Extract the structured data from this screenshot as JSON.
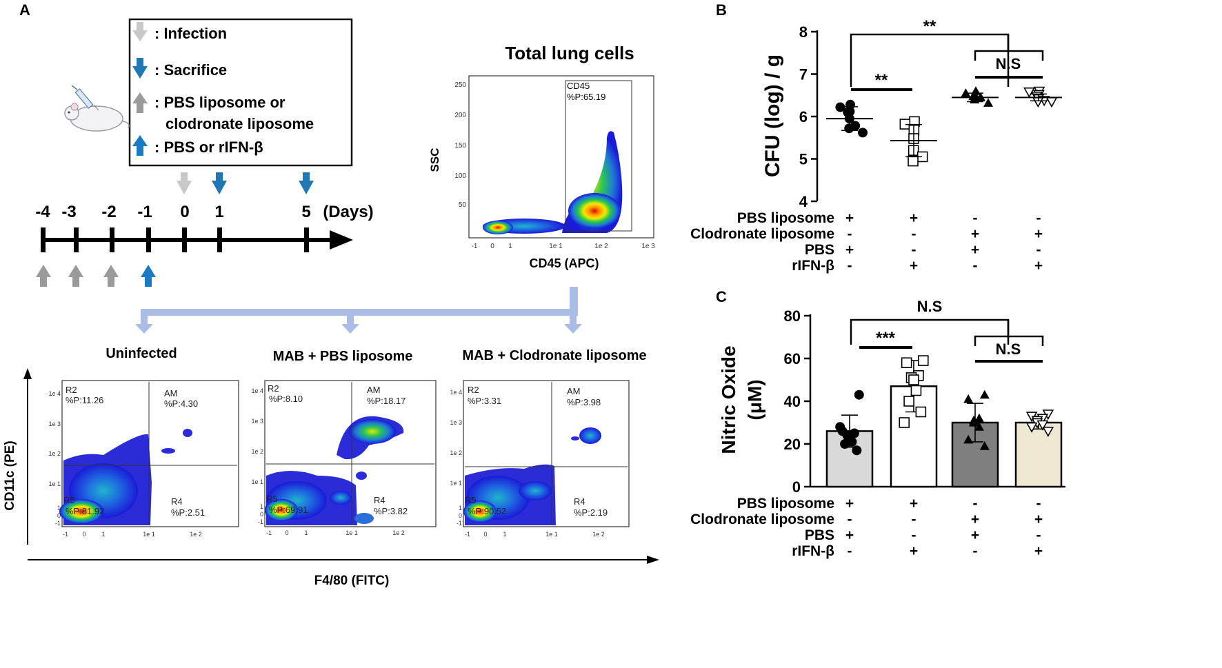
{
  "panel_a": {
    "label": "A",
    "legend": {
      "infection": ": Infection",
      "sacrifice": ": Sacrifice",
      "liposome_line1": ": PBS liposome or",
      "liposome_line2": "clodronate liposome",
      "treatment": ": PBS or rIFN-β"
    },
    "timeline": {
      "days": [
        "-4",
        "-3",
        "-2",
        "-1",
        "0",
        "1",
        "5"
      ],
      "unit": "(Days)"
    },
    "colors": {
      "infection": "#c8c8c8",
      "sacrifice": "#1f77b4",
      "liposome": "#9a9a9a",
      "treatment": "#1a7bc4",
      "connector": "#a9bde6"
    },
    "total_lung": {
      "title": "Total lung cells",
      "gate_name": "CD45",
      "gate_pct": "%P:65.19",
      "ylabel": "SSC",
      "xlabel": "CD45 (APC)",
      "y_ticks": [
        "250",
        "200",
        "150",
        "100",
        "50"
      ],
      "x_ticks": [
        "-1",
        "0",
        "1",
        "1e 1",
        "1e 2",
        "1e 3"
      ]
    },
    "flow_plots": [
      {
        "title": "Uninfected",
        "r2": "R2",
        "r2_pct": "%P:11.26",
        "am": "AM",
        "am_pct": "%P:4.30",
        "r4": "R4",
        "r4_pct": "%P:2.51",
        "r5": "R5",
        "r5_pct": "%P:81.92"
      },
      {
        "title": "MAB + PBS liposome",
        "r2": "R2",
        "r2_pct": "%P:8.10",
        "am": "AM",
        "am_pct": "%P:18.17",
        "r4": "R4",
        "r4_pct": "%P:3.82",
        "r5": "R5",
        "r5_pct": "%P:69.91"
      },
      {
        "title": "MAB + Clodronate liposome",
        "r2": "R2",
        "r2_pct": "%P:3.31",
        "am": "AM",
        "am_pct": "%P:3.98",
        "r4": "R4",
        "r4_pct": "%P:2.19",
        "r5": "R5",
        "r5_pct": "%P:90.52"
      }
    ],
    "flow_y_ticks": [
      "1e 4",
      "1e 3",
      "1e 2",
      "1e 1",
      "1",
      "0",
      "-1"
    ],
    "flow_x_ticks": [
      "-1",
      "0",
      "1",
      "1e 1",
      "1e 2"
    ],
    "flow_ylabel": "CD11c (PE)",
    "flow_xlabel": "F4/80 (FITC)"
  },
  "chart_data": [
    {
      "panel": "B",
      "type": "scatter",
      "title": "",
      "xlabel": "",
      "ylabel": "CFU (log) / g",
      "ylim": [
        4,
        8
      ],
      "yticks": [
        "4",
        "5",
        "6",
        "7",
        "8"
      ],
      "groups": [
        {
          "name": "PBS liposome + PBS",
          "marker": "filled-circle",
          "mean": 5.95,
          "sd": 0.28,
          "values": [
            6.28,
            6.22,
            6.12,
            6.1,
            5.95,
            5.78,
            5.72,
            5.62
          ]
        },
        {
          "name": "PBS liposome + rIFN-β",
          "marker": "open-square",
          "mean": 5.43,
          "sd": 0.38,
          "values": [
            5.88,
            5.82,
            5.68,
            5.48,
            5.2,
            5.05,
            4.95
          ]
        },
        {
          "name": "Clodronate liposome + PBS",
          "marker": "filled-triangle",
          "mean": 6.45,
          "sd": 0.1,
          "values": [
            6.6,
            6.55,
            6.5,
            6.48,
            6.45,
            6.45,
            6.4,
            6.32
          ]
        },
        {
          "name": "Clodronate liposome + rIFN-β",
          "marker": "open-triangle-down",
          "mean": 6.45,
          "sd": 0.08,
          "values": [
            6.6,
            6.58,
            6.52,
            6.48,
            6.42,
            6.38,
            6.35,
            6.35
          ]
        }
      ],
      "significance": [
        {
          "label": "**",
          "between": "group1 vs group2"
        },
        {
          "label": "**",
          "between": "group1 vs groups3-4"
        },
        {
          "label": "N.S",
          "between": "group3 vs group4"
        }
      ],
      "condition_rows": [
        {
          "label": "PBS liposome",
          "signs": [
            "+",
            "+",
            "-",
            "-"
          ]
        },
        {
          "label": "Clodronate liposome",
          "signs": [
            "-",
            "-",
            "+",
            "+"
          ]
        },
        {
          "label": "PBS",
          "signs": [
            "+",
            "-",
            "+",
            "-"
          ]
        },
        {
          "label": "rIFN-β",
          "signs": [
            "-",
            "+",
            "-",
            "+"
          ]
        }
      ]
    },
    {
      "panel": "C",
      "type": "bar",
      "title": "",
      "xlabel": "",
      "ylabel_line1": "Nitric Oxide",
      "ylabel_line2": "(μM)",
      "ylim": [
        0,
        80
      ],
      "yticks": [
        "0",
        "20",
        "40",
        "60",
        "80"
      ],
      "groups": [
        {
          "name": "PBS liposome + PBS",
          "color": "#d9d9d9",
          "marker": "filled-circle",
          "mean": 26,
          "sd": 7.5,
          "values": [
            43,
            26,
            25,
            24,
            22,
            21,
            20,
            17,
            28
          ]
        },
        {
          "name": "PBS liposome + rIFN-β",
          "color": "#ffffff",
          "marker": "open-square",
          "mean": 47,
          "sd": 12,
          "values": [
            59,
            58,
            52,
            51,
            50,
            45,
            40,
            35,
            30
          ]
        },
        {
          "name": "Clodronate liposome + PBS",
          "color": "#7f7f7f",
          "marker": "filled-triangle",
          "mean": 30,
          "sd": 9,
          "values": [
            43,
            41,
            32,
            31,
            30,
            28,
            22,
            19
          ]
        },
        {
          "name": "Clodronate liposome + rIFN-β",
          "color": "#efe9d3",
          "marker": "open-triangle-down",
          "mean": 30,
          "sd": 3,
          "values": [
            34,
            33,
            32,
            31,
            30,
            29,
            28,
            26
          ]
        }
      ],
      "significance": [
        {
          "label": "***",
          "between": "group1 vs group2"
        },
        {
          "label": "N.S",
          "between": "group1 vs groups3-4"
        },
        {
          "label": "N.S",
          "between": "group3 vs group4"
        }
      ],
      "condition_rows": [
        {
          "label": "PBS liposome",
          "signs": [
            "+",
            "+",
            "-",
            "-"
          ]
        },
        {
          "label": "Clodronate liposome",
          "signs": [
            "-",
            "-",
            "+",
            "+"
          ]
        },
        {
          "label": "PBS",
          "signs": [
            "+",
            "-",
            "+",
            "-"
          ]
        },
        {
          "label": "rIFN-β",
          "signs": [
            "-",
            "+",
            "-",
            "+"
          ]
        }
      ]
    }
  ],
  "panel_labels": {
    "b": "B",
    "c": "C"
  }
}
